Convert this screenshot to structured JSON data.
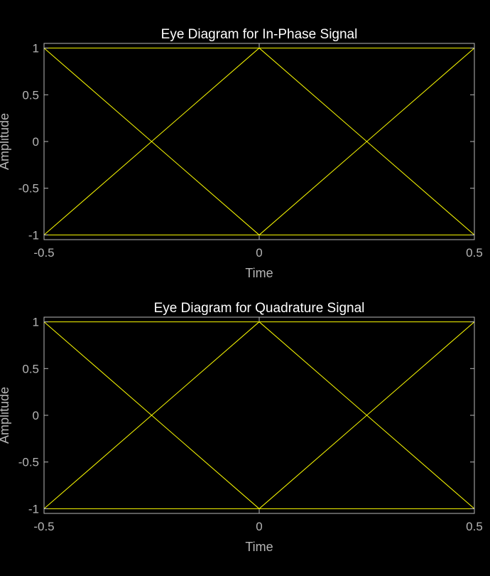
{
  "colors": {
    "background": "#000000",
    "trace": "#ffff00",
    "axes": "#b8b8b8",
    "text": "#b5b5b5",
    "title": "#ffffff"
  },
  "chart_data": [
    {
      "type": "line",
      "title": "Eye Diagram for In-Phase Signal",
      "xlabel": "Time",
      "ylabel": "Amplitude",
      "xlim": [
        -0.5,
        0.5
      ],
      "ylim": [
        -1.05,
        1.05
      ],
      "xticks": [
        -0.5,
        0,
        0.5
      ],
      "xtick_labels": [
        "-0.5",
        "0",
        "0.5"
      ],
      "yticks": [
        1,
        0.5,
        0,
        -0.5,
        -1
      ],
      "ytick_labels": [
        "1",
        "0.5",
        "0",
        "-0.5",
        "-1"
      ],
      "grid": false,
      "series": [
        {
          "x": [
            -0.5,
            0.5
          ],
          "y": [
            1,
            1
          ]
        },
        {
          "x": [
            -0.5,
            0.5
          ],
          "y": [
            -1,
            -1
          ]
        },
        {
          "x": [
            -0.5,
            0,
            0.5
          ],
          "y": [
            1,
            -1,
            1
          ]
        },
        {
          "x": [
            -0.5,
            0,
            0.5
          ],
          "y": [
            -1,
            1,
            -1
          ]
        }
      ]
    },
    {
      "type": "line",
      "title": "Eye Diagram for Quadrature Signal",
      "xlabel": "Time",
      "ylabel": "Amplitude",
      "xlim": [
        -0.5,
        0.5
      ],
      "ylim": [
        -1.05,
        1.05
      ],
      "xticks": [
        -0.5,
        0,
        0.5
      ],
      "xtick_labels": [
        "-0.5",
        "0",
        "0.5"
      ],
      "yticks": [
        1,
        0.5,
        0,
        -0.5,
        -1
      ],
      "ytick_labels": [
        "1",
        "0.5",
        "0",
        "-0.5",
        "-1"
      ],
      "grid": false,
      "series": [
        {
          "x": [
            -0.5,
            0.5
          ],
          "y": [
            1,
            1
          ]
        },
        {
          "x": [
            -0.5,
            0.5
          ],
          "y": [
            -1,
            -1
          ]
        },
        {
          "x": [
            -0.5,
            0,
            0.5
          ],
          "y": [
            1,
            -1,
            1
          ]
        },
        {
          "x": [
            -0.5,
            0,
            0.5
          ],
          "y": [
            -1,
            1,
            -1
          ]
        }
      ]
    }
  ]
}
